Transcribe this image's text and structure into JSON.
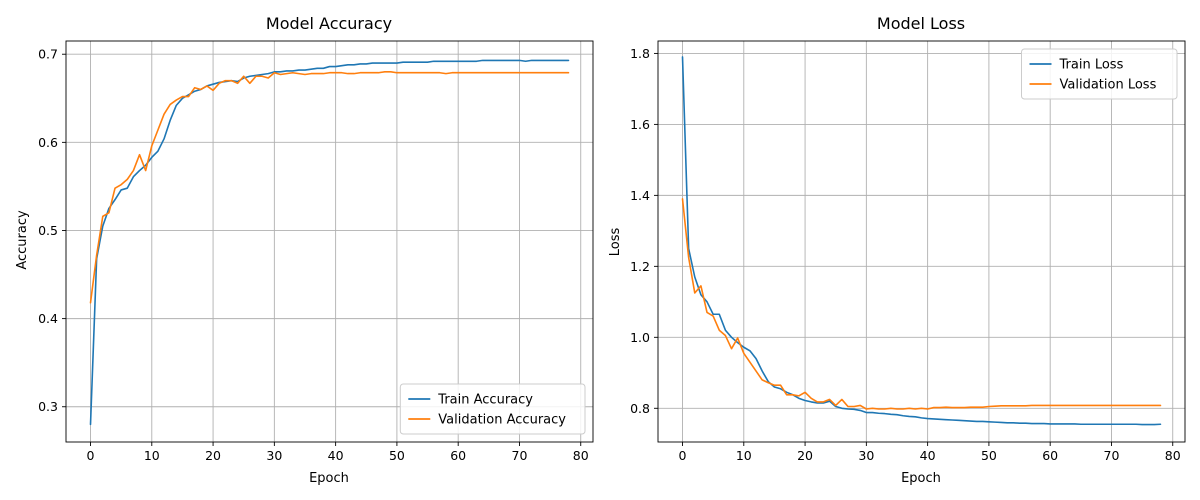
{
  "chart_data": [
    {
      "type": "line",
      "title": "Model Accuracy",
      "xlabel": "Epoch",
      "ylabel": "Accuracy",
      "xlim": [
        -4,
        82
      ],
      "ylim": [
        0.26,
        0.715
      ],
      "xticks": [
        0,
        10,
        20,
        30,
        40,
        50,
        60,
        70,
        80
      ],
      "yticks": [
        0.3,
        0.4,
        0.5,
        0.6,
        0.7
      ],
      "tick_decimals": 1,
      "grid": true,
      "legend_position": "lower-right",
      "x": [
        0,
        1,
        2,
        3,
        4,
        5,
        6,
        7,
        8,
        9,
        10,
        11,
        12,
        13,
        14,
        15,
        16,
        17,
        18,
        19,
        20,
        21,
        22,
        23,
        24,
        25,
        26,
        27,
        28,
        29,
        30,
        31,
        32,
        33,
        34,
        35,
        36,
        37,
        38,
        39,
        40,
        41,
        42,
        43,
        44,
        45,
        46,
        47,
        48,
        49,
        50,
        51,
        52,
        53,
        54,
        55,
        56,
        57,
        58,
        59,
        60,
        61,
        62,
        63,
        64,
        65,
        66,
        67,
        68,
        69,
        70,
        71,
        72,
        73,
        74,
        75,
        76,
        77,
        78
      ],
      "series": [
        {
          "name": "Train Accuracy",
          "color": "#1f77b4",
          "values": [
            0.28,
            0.468,
            0.505,
            0.525,
            0.535,
            0.546,
            0.548,
            0.561,
            0.568,
            0.574,
            0.583,
            0.59,
            0.604,
            0.625,
            0.642,
            0.65,
            0.654,
            0.658,
            0.66,
            0.664,
            0.666,
            0.668,
            0.669,
            0.67,
            0.669,
            0.673,
            0.675,
            0.676,
            0.677,
            0.678,
            0.68,
            0.68,
            0.681,
            0.681,
            0.682,
            0.682,
            0.683,
            0.684,
            0.684,
            0.686,
            0.686,
            0.687,
            0.688,
            0.688,
            0.689,
            0.689,
            0.69,
            0.69,
            0.69,
            0.69,
            0.69,
            0.691,
            0.691,
            0.691,
            0.691,
            0.691,
            0.692,
            0.692,
            0.692,
            0.692,
            0.692,
            0.692,
            0.692,
            0.692,
            0.693,
            0.693,
            0.693,
            0.693,
            0.693,
            0.693,
            0.693,
            0.692,
            0.693,
            0.693,
            0.693,
            0.693,
            0.693,
            0.693,
            0.693
          ]
        },
        {
          "name": "Validation Accuracy",
          "color": "#ff7f0e",
          "values": [
            0.418,
            0.472,
            0.516,
            0.52,
            0.548,
            0.552,
            0.558,
            0.568,
            0.586,
            0.568,
            0.596,
            0.614,
            0.632,
            0.643,
            0.648,
            0.652,
            0.652,
            0.662,
            0.66,
            0.664,
            0.659,
            0.667,
            0.67,
            0.67,
            0.667,
            0.675,
            0.667,
            0.675,
            0.675,
            0.673,
            0.679,
            0.677,
            0.678,
            0.679,
            0.678,
            0.677,
            0.678,
            0.678,
            0.678,
            0.679,
            0.679,
            0.679,
            0.678,
            0.678,
            0.679,
            0.679,
            0.679,
            0.679,
            0.68,
            0.68,
            0.679,
            0.679,
            0.679,
            0.679,
            0.679,
            0.679,
            0.679,
            0.679,
            0.678,
            0.679,
            0.679,
            0.679,
            0.679,
            0.679,
            0.679,
            0.679,
            0.679,
            0.679,
            0.679,
            0.679,
            0.679,
            0.679,
            0.679,
            0.679,
            0.679,
            0.679,
            0.679,
            0.679,
            0.679
          ]
        }
      ]
    },
    {
      "type": "line",
      "title": "Model Loss",
      "xlabel": "Epoch",
      "ylabel": "Loss",
      "xlim": [
        -4,
        82
      ],
      "ylim": [
        0.705,
        1.835
      ],
      "xticks": [
        0,
        10,
        20,
        30,
        40,
        50,
        60,
        70,
        80
      ],
      "yticks": [
        0.8,
        1.0,
        1.2,
        1.4,
        1.6,
        1.8
      ],
      "tick_decimals": 1,
      "grid": true,
      "legend_position": "upper-right",
      "x": [
        0,
        1,
        2,
        3,
        4,
        5,
        6,
        7,
        8,
        9,
        10,
        11,
        12,
        13,
        14,
        15,
        16,
        17,
        18,
        19,
        20,
        21,
        22,
        23,
        24,
        25,
        26,
        27,
        28,
        29,
        30,
        31,
        32,
        33,
        34,
        35,
        36,
        37,
        38,
        39,
        40,
        41,
        42,
        43,
        44,
        45,
        46,
        47,
        48,
        49,
        50,
        51,
        52,
        53,
        54,
        55,
        56,
        57,
        58,
        59,
        60,
        61,
        62,
        63,
        64,
        65,
        66,
        67,
        68,
        69,
        70,
        71,
        72,
        73,
        74,
        75,
        76,
        77,
        78
      ],
      "series": [
        {
          "name": "Train Loss",
          "color": "#1f77b4",
          "values": [
            1.79,
            1.25,
            1.17,
            1.12,
            1.1,
            1.065,
            1.065,
            1.02,
            1.0,
            0.985,
            0.972,
            0.962,
            0.94,
            0.905,
            0.875,
            0.86,
            0.855,
            0.845,
            0.838,
            0.828,
            0.822,
            0.818,
            0.815,
            0.815,
            0.82,
            0.805,
            0.8,
            0.798,
            0.797,
            0.794,
            0.788,
            0.788,
            0.786,
            0.785,
            0.783,
            0.782,
            0.779,
            0.777,
            0.776,
            0.773,
            0.771,
            0.77,
            0.769,
            0.768,
            0.767,
            0.766,
            0.765,
            0.764,
            0.763,
            0.763,
            0.762,
            0.761,
            0.76,
            0.759,
            0.759,
            0.758,
            0.758,
            0.757,
            0.757,
            0.757,
            0.756,
            0.756,
            0.756,
            0.756,
            0.756,
            0.755,
            0.755,
            0.755,
            0.755,
            0.755,
            0.755,
            0.755,
            0.755,
            0.755,
            0.755,
            0.754,
            0.754,
            0.754,
            0.755
          ]
        },
        {
          "name": "Validation Loss",
          "color": "#ff7f0e",
          "values": [
            1.39,
            1.225,
            1.125,
            1.145,
            1.07,
            1.06,
            1.02,
            1.005,
            0.968,
            0.998,
            0.955,
            0.93,
            0.905,
            0.88,
            0.872,
            0.865,
            0.865,
            0.838,
            0.838,
            0.835,
            0.845,
            0.828,
            0.818,
            0.818,
            0.825,
            0.808,
            0.825,
            0.805,
            0.805,
            0.808,
            0.798,
            0.8,
            0.798,
            0.798,
            0.8,
            0.798,
            0.798,
            0.8,
            0.798,
            0.8,
            0.798,
            0.802,
            0.802,
            0.803,
            0.802,
            0.802,
            0.802,
            0.803,
            0.803,
            0.803,
            0.805,
            0.806,
            0.807,
            0.807,
            0.807,
            0.807,
            0.807,
            0.808,
            0.808,
            0.808,
            0.808,
            0.808,
            0.808,
            0.808,
            0.808,
            0.808,
            0.808,
            0.808,
            0.808,
            0.808,
            0.808,
            0.808,
            0.808,
            0.808,
            0.808,
            0.808,
            0.808,
            0.808,
            0.808
          ]
        }
      ]
    }
  ]
}
